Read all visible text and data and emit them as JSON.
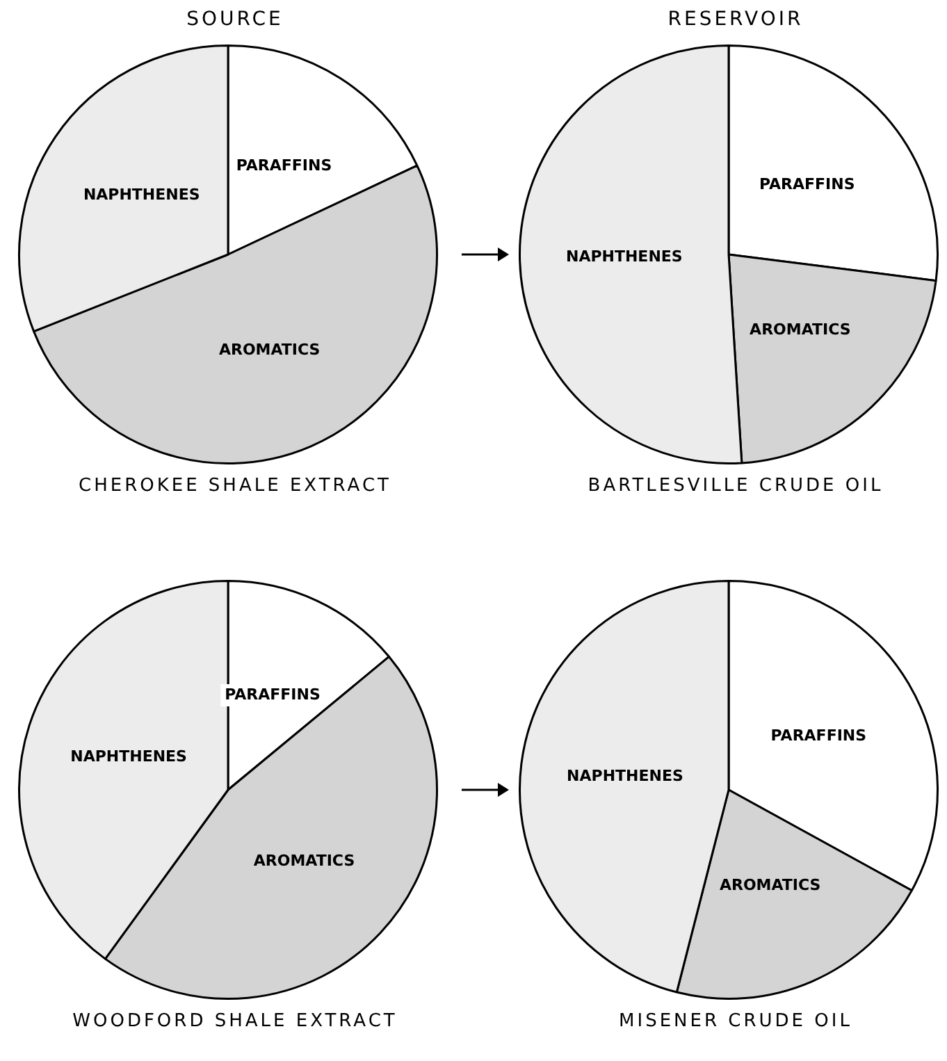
{
  "chart_data": [
    {
      "type": "pie",
      "title": "CHEROKEE SHALE EXTRACT",
      "annotations": [
        "SOURCE"
      ],
      "categories": [
        "PARAFFINS",
        "AROMATICS",
        "NAPHTHENES"
      ],
      "values": [
        18,
        51,
        31
      ],
      "colors": [
        "#ffffff",
        "#d4d4d4",
        "#ececec"
      ],
      "legend": false
    },
    {
      "type": "pie",
      "title": "BARTLESVILLE CRUDE OIL",
      "annotations": [
        "RESERVOIR"
      ],
      "categories": [
        "PARAFFINS",
        "AROMATICS",
        "NAPHTHENES"
      ],
      "values": [
        27,
        22,
        51
      ],
      "colors": [
        "#ffffff",
        "#d4d4d4",
        "#ececec"
      ],
      "legend": false
    },
    {
      "type": "pie",
      "title": "WOODFORD SHALE EXTRACT",
      "categories": [
        "PARAFFINS",
        "AROMATICS",
        "NAPHTHENES"
      ],
      "values": [
        14,
        46,
        40
      ],
      "colors": [
        "#ffffff",
        "#d4d4d4",
        "#ececec"
      ],
      "legend": false
    },
    {
      "type": "pie",
      "title": "MISENER CRUDE OIL",
      "categories": [
        "PARAFFINS",
        "AROMATICS",
        "NAPHTHENES"
      ],
      "values": [
        33,
        21,
        46
      ],
      "colors": [
        "#ffffff",
        "#d4d4d4",
        "#ececec"
      ],
      "legend": false
    }
  ]
}
